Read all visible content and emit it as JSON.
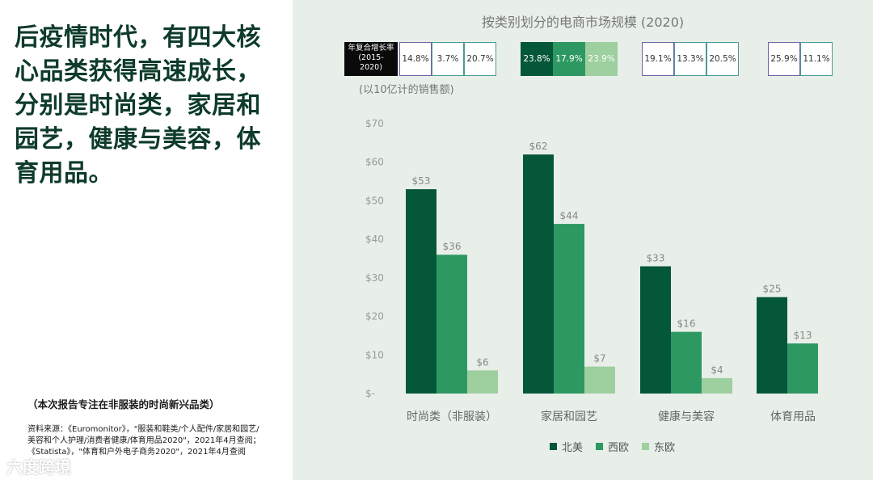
{
  "headline": "后疫情时代，有四大核心品类获得高速成长，分别是时尚类，家居和园艺，健康与美容，体育用品。",
  "focus_note": "（本次报告专注在非服装的时尚新兴品类）",
  "source": "资料来源：《Euromonitor》，\"服装和鞋类/个人配件/家居和园艺/美容和个人护理/消费者健康/体育用品2020\"，2021年4月查阅；《Statista》，\"体育和户外电子商务2020\"，2021年4月查阅",
  "watermark": "六度跨境",
  "colors": {
    "north_america": "#05573a",
    "western_europe": "#2e9862",
    "eastern_europe": "#9ecf9f",
    "cagr_border_purple": "#6f62a8",
    "cagr_border_teal": "#4a9a96"
  },
  "cagr": {
    "label": "年复合增长率(2015-2020)",
    "groups": [
      {
        "values": [
          "14.8%",
          "3.7%",
          "20.7%"
        ],
        "filled": false
      },
      {
        "values": [
          "23.8%",
          "17.9%",
          "23.9%"
        ],
        "filled": true
      },
      {
        "values": [
          "19.1%",
          "13.3%",
          "20.5%"
        ],
        "filled": false
      },
      {
        "values": [
          "25.9%",
          "11.1%"
        ],
        "filled": false
      }
    ]
  },
  "chart_data": {
    "type": "bar",
    "title": "按类别划分的电商市场规模 (2020)",
    "ylabel": "(以10亿计的销售额)",
    "categories": [
      "时尚类（非服装）",
      "家居和园艺",
      "健康与美容",
      "体育用品"
    ],
    "series": [
      {
        "name": "北美",
        "values": [
          53,
          62,
          33,
          25
        ],
        "labels": [
          "$53",
          "$62",
          "$33",
          "$25"
        ]
      },
      {
        "name": "西欧",
        "values": [
          36,
          44,
          16,
          13
        ],
        "labels": [
          "$36",
          "$44",
          "$16",
          "$13"
        ]
      },
      {
        "name": "东欧",
        "values": [
          6,
          7,
          4,
          null
        ],
        "labels": [
          "$6",
          "$7",
          "$4",
          ""
        ]
      }
    ],
    "yticks": [
      "$-",
      "$10",
      "$20",
      "$30",
      "$40",
      "$50",
      "$60",
      "$70"
    ],
    "ylim": [
      0,
      70
    ],
    "grid": false,
    "legend_position": "bottom"
  }
}
